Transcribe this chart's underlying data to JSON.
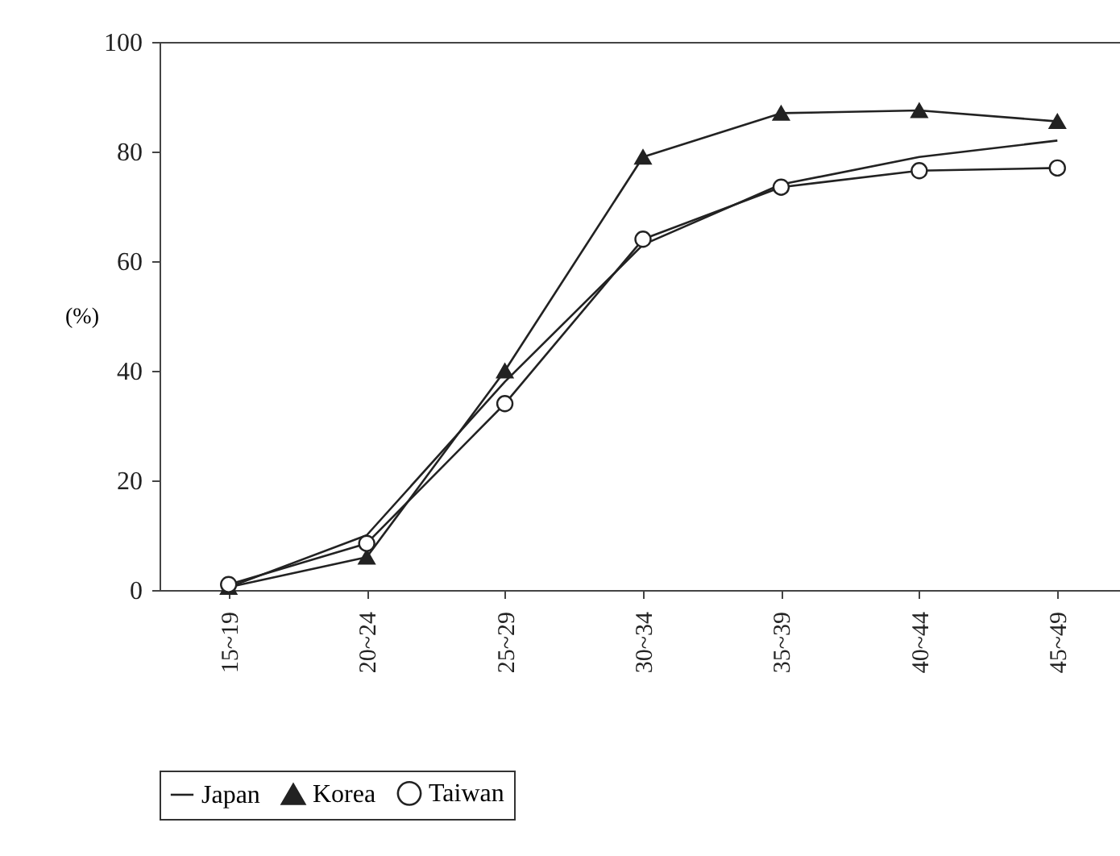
{
  "chart_data": {
    "type": "line",
    "ylabel": "(%)",
    "categories": [
      "15~19",
      "20~24",
      "25~29",
      "30~34",
      "35~39",
      "40~44",
      "45~49"
    ],
    "series": [
      {
        "name": "Japan",
        "color": "#222222",
        "marker": "none",
        "values": [
          0.5,
          10,
          38,
          63,
          74,
          79,
          82
        ]
      },
      {
        "name": "Korea",
        "color": "#222222",
        "marker": "triangle",
        "values": [
          0.5,
          6,
          40,
          79,
          87,
          87.5,
          85.5
        ]
      },
      {
        "name": "Taiwan",
        "color": "#222222",
        "marker": "circle",
        "values": [
          1,
          8.5,
          34,
          64,
          73.5,
          76.5,
          77
        ]
      }
    ],
    "ylim": [
      0,
      100
    ],
    "yticks": [
      0,
      20,
      40,
      60,
      80,
      100
    ],
    "grid": false,
    "legend": "bottom"
  }
}
